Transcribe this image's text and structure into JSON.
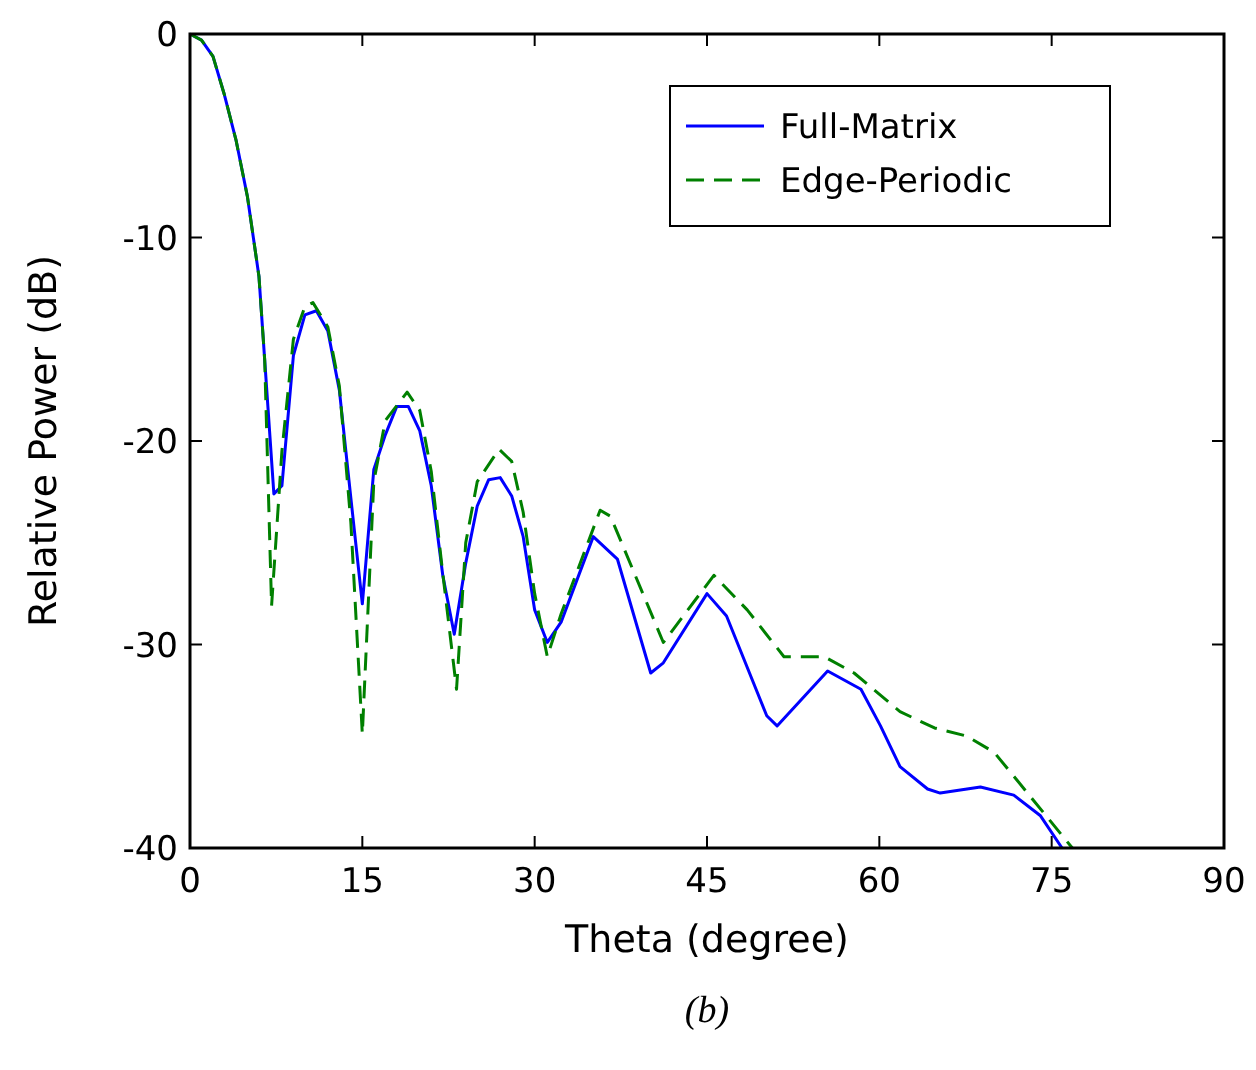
{
  "chart_data": {
    "type": "line",
    "xlabel": "Theta  (degree)",
    "ylabel": "Relative Power  (dB)",
    "xlim": [
      0,
      90
    ],
    "ylim": [
      -40,
      0
    ],
    "xticks": [
      0,
      15,
      30,
      45,
      60,
      75,
      90
    ],
    "yticks": [
      -40,
      -30,
      -20,
      -10,
      0
    ],
    "grid": false,
    "legend": "top right",
    "marker": "none",
    "annotations": [
      "(b)"
    ],
    "series": [
      {
        "name": "Full-Matrix",
        "color": "#0000ff",
        "line_style": "solid",
        "x": [
          0,
          1,
          2,
          3,
          4,
          5,
          6,
          6.5,
          7.3,
          8,
          9,
          10,
          11,
          12,
          13,
          14,
          15,
          16,
          17,
          18,
          19,
          20,
          21,
          22,
          23,
          24,
          25,
          26,
          27,
          28,
          29,
          30,
          31.1,
          32.3,
          35.1,
          37.2,
          40.1,
          41.2,
          45,
          46.7,
          50.2,
          51.1,
          55.5,
          58.4,
          60.1,
          61.8,
          64.2,
          65.3,
          68.8,
          71.7,
          74,
          75.9
        ],
        "values": [
          0,
          -0.3,
          -1.1,
          -3,
          -5.2,
          -8,
          -11.9,
          -16,
          -22.6,
          -22.2,
          -15.8,
          -13.8,
          -13.6,
          -14.6,
          -17.5,
          -22.8,
          -28,
          -21.4,
          -19.7,
          -18.3,
          -18.3,
          -19.5,
          -22.2,
          -26.6,
          -29.5,
          -26,
          -23.2,
          -21.9,
          -21.8,
          -22.7,
          -24.7,
          -28.3,
          -29.9,
          -28.9,
          -24.7,
          -25.8,
          -31.4,
          -30.9,
          -27.5,
          -28.6,
          -33.5,
          -34,
          -31.3,
          -32.2,
          -34,
          -36,
          -37.1,
          -37.3,
          -37,
          -37.4,
          -38.4,
          -40
        ]
      },
      {
        "name": "Edge-Periodic",
        "color": "#008000",
        "line_style": "dashed",
        "x": [
          0,
          1,
          2,
          3,
          4,
          5,
          6,
          6.5,
          7.1,
          8,
          9,
          10,
          10.7,
          12,
          13,
          14,
          15,
          16,
          17,
          18.9,
          20,
          21,
          22,
          23.2,
          24,
          25,
          26.9,
          28,
          29,
          30,
          31.1,
          32.3,
          35.7,
          36.6,
          41.2,
          45.6,
          48.5,
          51.7,
          55.2,
          57.8,
          61.8,
          64.8,
          67.6,
          70,
          72.9,
          76.8
        ],
        "values": [
          0,
          -0.3,
          -1.1,
          -3,
          -5.2,
          -8,
          -11.9,
          -16,
          -28.1,
          -20.5,
          -15,
          -13.4,
          -13.2,
          -14.4,
          -17.3,
          -24,
          -34.4,
          -22,
          -19,
          -17.6,
          -18.5,
          -21.5,
          -26.5,
          -32.2,
          -25,
          -22,
          -20.4,
          -21,
          -23.5,
          -27.5,
          -30.6,
          -28.5,
          -23.4,
          -23.7,
          -29.9,
          -26.6,
          -28.3,
          -30.6,
          -30.6,
          -31.4,
          -33.3,
          -34.1,
          -34.5,
          -35.3,
          -37.3,
          -40
        ]
      }
    ]
  }
}
